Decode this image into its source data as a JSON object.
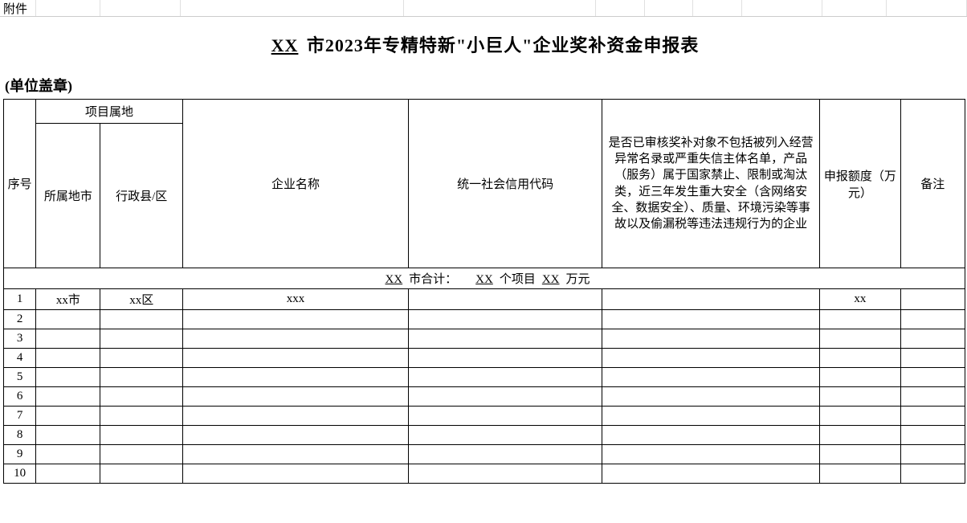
{
  "top_label": "附件",
  "title_prefix": "XX",
  "title_text": "市2023年专精特新\"小巨人\"企业奖补资金申报表",
  "stamp_text": "(单位盖章)",
  "headers": {
    "seq": "序号",
    "location_group": "项目属地",
    "city": "所属地市",
    "district": "行政县/区",
    "company": "企业名称",
    "credit_code": "统一社会信用代码",
    "check": "是否已审核奖补对象不包括被列入经营异常名录或严重失信主体名单，产品（服务）属于国家禁止、限制或淘汰类，近三年发生重大安全（含网络安全、数据安全）、质量、环境污染等事故以及偷漏税等违法违规行为的企业",
    "amount": "申报额度（万元）",
    "note": "备注"
  },
  "summary": {
    "city_placeholder": "XX",
    "label_city_suffix": "市合计：",
    "projects_placeholder": "XX",
    "label_projects_suffix": "个项目",
    "amount_placeholder": "XX",
    "label_amount_suffix": "万元"
  },
  "rows": [
    {
      "seq": "1",
      "city": "xx市",
      "district": "xx区",
      "company": "xxx",
      "code": "",
      "check": "",
      "amount": "xx",
      "note": ""
    },
    {
      "seq": "2",
      "city": "",
      "district": "",
      "company": "",
      "code": "",
      "check": "",
      "amount": "",
      "note": ""
    },
    {
      "seq": "3",
      "city": "",
      "district": "",
      "company": "",
      "code": "",
      "check": "",
      "amount": "",
      "note": ""
    },
    {
      "seq": "4",
      "city": "",
      "district": "",
      "company": "",
      "code": "",
      "check": "",
      "amount": "",
      "note": ""
    },
    {
      "seq": "5",
      "city": "",
      "district": "",
      "company": "",
      "code": "",
      "check": "",
      "amount": "",
      "note": ""
    },
    {
      "seq": "6",
      "city": "",
      "district": "",
      "company": "",
      "code": "",
      "check": "",
      "amount": "",
      "note": ""
    },
    {
      "seq": "7",
      "city": "",
      "district": "",
      "company": "",
      "code": "",
      "check": "",
      "amount": "",
      "note": ""
    },
    {
      "seq": "8",
      "city": "",
      "district": "",
      "company": "",
      "code": "",
      "check": "",
      "amount": "",
      "note": ""
    },
    {
      "seq": "9",
      "city": "",
      "district": "",
      "company": "",
      "code": "",
      "check": "",
      "amount": "",
      "note": ""
    },
    {
      "seq": "10",
      "city": "",
      "district": "",
      "company": "",
      "code": "",
      "check": "",
      "amount": "",
      "note": ""
    }
  ],
  "top_grid_widths": [
    40,
    80,
    100,
    280,
    240,
    60,
    60,
    60,
    100,
    80,
    100
  ],
  "colors": {
    "grid_faint": "#e0e0e0",
    "grid_medium": "#cccccc",
    "border": "#000000",
    "background": "#ffffff",
    "text": "#000000"
  },
  "fonts": {
    "body_family": "SimSun",
    "title_size_pt": 16,
    "header_size_pt": 11,
    "cell_size_pt": 11
  }
}
